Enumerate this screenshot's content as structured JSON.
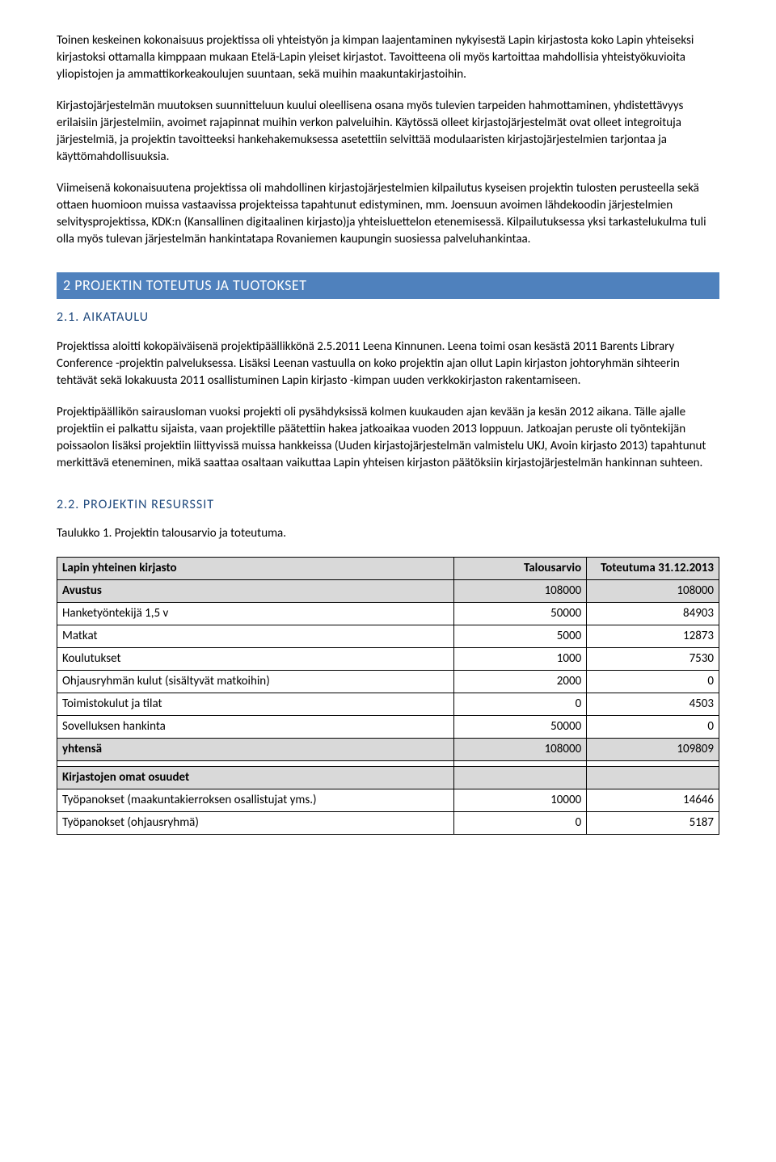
{
  "paragraphs": {
    "p1": "Toinen keskeinen kokonaisuus projektissa oli yhteistyön ja kimpan laajentaminen nykyisestä Lapin kirjastosta koko Lapin yhteiseksi kirjastoksi ottamalla kimppaan mukaan Etelä-Lapin yleiset kirjastot. Tavoitteena oli myös kartoittaa mahdollisia yhteistyökuvioita yliopistojen ja ammattikorkeakoulujen suuntaan, sekä muihin maakuntakirjastoihin.",
    "p2": "Kirjastojärjestelmän muutoksen suunnitteluun kuului oleellisena osana myös tulevien tarpeiden hahmottaminen, yhdistettävyys erilaisiin järjestelmiin, avoimet rajapinnat muihin verkon palveluihin. Käytössä olleet kirjastojärjestelmät ovat olleet integroituja järjestelmiä, ja projektin tavoitteeksi hankehakemuksessa asetettiin selvittää modulaaristen kirjastojärjestelmien tarjontaa ja käyttömahdollisuuksia.",
    "p3": "Viimeisenä kokonaisuutena projektissa oli mahdollinen kirjastojärjestelmien kilpailutus kyseisen projektin tulosten perusteella sekä ottaen huomioon muissa vastaavissa projekteissa tapahtunut edistyminen, mm. Joensuun avoimen lähdekoodin järjestelmien selvitysprojektissa, KDK:n (Kansallinen digitaalinen kirjasto)ja yhteisluettelon etenemisessä. Kilpailutuksessa yksi tarkastelukulma tuli olla myös tulevan järjestelmän hankintatapa Rovaniemen kaupungin suosiessa palveluhankintaa."
  },
  "section2": {
    "banner": "2 PROJEKTIN TOTEUTUS JA TUOTOKSET",
    "sub1": "2.1. AIKATAULU",
    "p4": "Projektissa aloitti kokopäiväisenä projektipäällikkönä 2.5.2011 Leena Kinnunen. Leena toimi osan kesästä 2011 Barents Library Conference -projektin palveluksessa. Lisäksi Leenan vastuulla on koko projektin ajan ollut Lapin kirjaston johtoryhmän sihteerin tehtävät sekä lokakuusta 2011 osallistuminen Lapin kirjasto -kimpan uuden verkkokirjaston rakentamiseen.",
    "p5": "Projektipäällikön sairausloman vuoksi projekti oli pysähdyksissä kolmen kuukauden ajan kevään ja kesän 2012 aikana. Tälle ajalle projektiin ei palkattu sijaista, vaan projektille päätettiin hakea jatkoaikaa vuoden 2013 loppuun. Jatkoajan peruste oli työntekijän poissaolon lisäksi projektiin liittyvissä muissa hankkeissa (Uuden kirjastojärjestelmän valmistelu UKJ, Avoin kirjasto 2013) tapahtunut merkittävä eteneminen, mikä saattaa osaltaan vaikuttaa Lapin yhteisen kirjaston päätöksiin kirjastojärjestelmän hankinnan suhteen.",
    "sub2": "2.2. PROJEKTIN RESURSSIT",
    "table_caption": "Taulukko 1. Projektin talousarvio ja toteutuma."
  },
  "table": {
    "header": {
      "c0": "Lapin yhteinen kirjasto",
      "c1": "Talousarvio",
      "c2": "Toteutuma 31.12.2013"
    },
    "rows": [
      {
        "shaded": true,
        "bold": true,
        "c0": "Avustus",
        "c1": "108000",
        "c2": "108000"
      },
      {
        "shaded": false,
        "bold": false,
        "c0": "Hanketyöntekijä 1,5 v",
        "c1": "50000",
        "c2": "84903"
      },
      {
        "shaded": false,
        "bold": false,
        "c0": "Matkat",
        "c1": "5000",
        "c2": "12873"
      },
      {
        "shaded": false,
        "bold": false,
        "c0": "Koulutukset",
        "c1": "1000",
        "c2": "7530"
      },
      {
        "shaded": false,
        "bold": false,
        "c0": "Ohjausryhmän kulut (sisältyvät  matkoihin)",
        "c1": "2000",
        "c2": "0"
      },
      {
        "shaded": false,
        "bold": false,
        "c0": "Toimistokulut ja tilat",
        "c1": "0",
        "c2": "4503"
      },
      {
        "shaded": false,
        "bold": false,
        "c0": "Sovelluksen hankinta",
        "c1": "50000",
        "c2": "0"
      },
      {
        "shaded": true,
        "bold": true,
        "c0": "yhtensä",
        "c1": "108000",
        "c2": "109809"
      },
      {
        "shaded": false,
        "bold": false,
        "c0": "",
        "c1": "",
        "c2": ""
      },
      {
        "shaded": true,
        "bold": true,
        "c0": "Kirjastojen omat osuudet",
        "c1": "",
        "c2": ""
      },
      {
        "shaded": false,
        "bold": false,
        "c0": "Työpanokset (maakuntakierroksen osallistujat yms.)",
        "c1": "10000",
        "c2": "14646"
      },
      {
        "shaded": false,
        "bold": false,
        "c0": "Työpanokset (ohjausryhmä)",
        "c1": "0",
        "c2": "5187"
      }
    ],
    "col_widths": [
      "60%",
      "20%",
      "20%"
    ]
  },
  "colors": {
    "banner_bg": "#4f81bd",
    "banner_text": "#ffffff",
    "heading_text": "#1f497d",
    "shaded_row": "#d9d9d9",
    "border": "#000000"
  }
}
